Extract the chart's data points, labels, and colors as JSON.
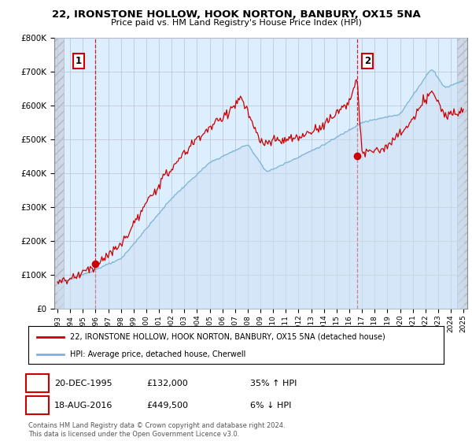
{
  "title1": "22, IRONSTONE HOLLOW, HOOK NORTON, BANBURY, OX15 5NA",
  "title2": "Price paid vs. HM Land Registry's House Price Index (HPI)",
  "legend_line1": "22, IRONSTONE HOLLOW, HOOK NORTON, BANBURY, OX15 5NA (detached house)",
  "legend_line2": "HPI: Average price, detached house, Cherwell",
  "sale1_date": "20-DEC-1995",
  "sale1_price": 132000,
  "sale1_label": "1",
  "sale1_note": "35% ↑ HPI",
  "sale2_date": "18-AUG-2016",
  "sale2_price": 449500,
  "sale2_label": "2",
  "sale2_note": "6% ↓ HPI",
  "footer": "Contains HM Land Registry data © Crown copyright and database right 2024.\nThis data is licensed under the Open Government Licence v3.0.",
  "hpi_color": "#7ab4d8",
  "hpi_fill_color": "#cce0f0",
  "price_color": "#cc0000",
  "vline_color": "#cc0000",
  "grid_color": "#c0c8d8",
  "bg_color": "#ddeeff",
  "ylim": [
    0,
    800000
  ],
  "xlim_start": 1992.75,
  "xlim_end": 2025.3,
  "sale1_x": 1995.96,
  "sale2_x": 2016.63,
  "hatch_end": 1993.5,
  "hatch_start_right": 2024.5
}
